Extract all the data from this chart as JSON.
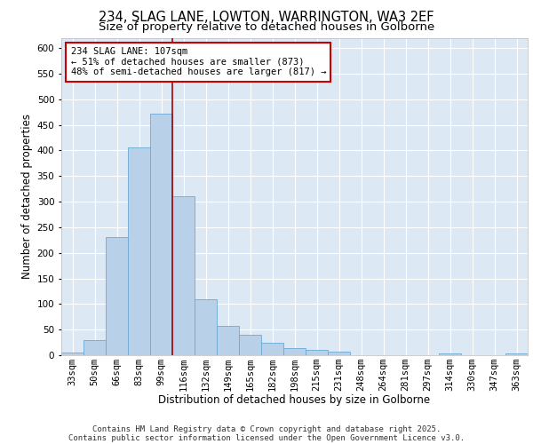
{
  "title_line1": "234, SLAG LANE, LOWTON, WARRINGTON, WA3 2EF",
  "title_line2": "Size of property relative to detached houses in Golborne",
  "xlabel": "Distribution of detached houses by size in Golborne",
  "ylabel": "Number of detached properties",
  "categories": [
    "33sqm",
    "50sqm",
    "66sqm",
    "83sqm",
    "99sqm",
    "116sqm",
    "132sqm",
    "149sqm",
    "165sqm",
    "182sqm",
    "198sqm",
    "215sqm",
    "231sqm",
    "248sqm",
    "264sqm",
    "281sqm",
    "297sqm",
    "314sqm",
    "330sqm",
    "347sqm",
    "363sqm"
  ],
  "values": [
    5,
    30,
    230,
    405,
    472,
    311,
    110,
    57,
    40,
    25,
    14,
    11,
    7,
    0,
    0,
    0,
    0,
    4,
    0,
    0,
    4
  ],
  "bar_color": "#b8d0e8",
  "bar_edge_color": "#6aaad4",
  "background_color": "#dce9f5",
  "grid_color": "#ffffff",
  "annotation_text": "234 SLAG LANE: 107sqm\n← 51% of detached houses are smaller (873)\n48% of semi-detached houses are larger (817) →",
  "vline_color": "#aa0000",
  "vline_index": 4.5,
  "box_color": "#cc0000",
  "ylim": [
    0,
    620
  ],
  "yticks": [
    0,
    50,
    100,
    150,
    200,
    250,
    300,
    350,
    400,
    450,
    500,
    550,
    600
  ],
  "footer_line1": "Contains HM Land Registry data © Crown copyright and database right 2025.",
  "footer_line2": "Contains public sector information licensed under the Open Government Licence v3.0.",
  "title_fontsize": 10.5,
  "subtitle_fontsize": 9.5,
  "axis_label_fontsize": 8.5,
  "tick_fontsize": 7.5,
  "annotation_fontsize": 7.5,
  "footer_fontsize": 6.5
}
